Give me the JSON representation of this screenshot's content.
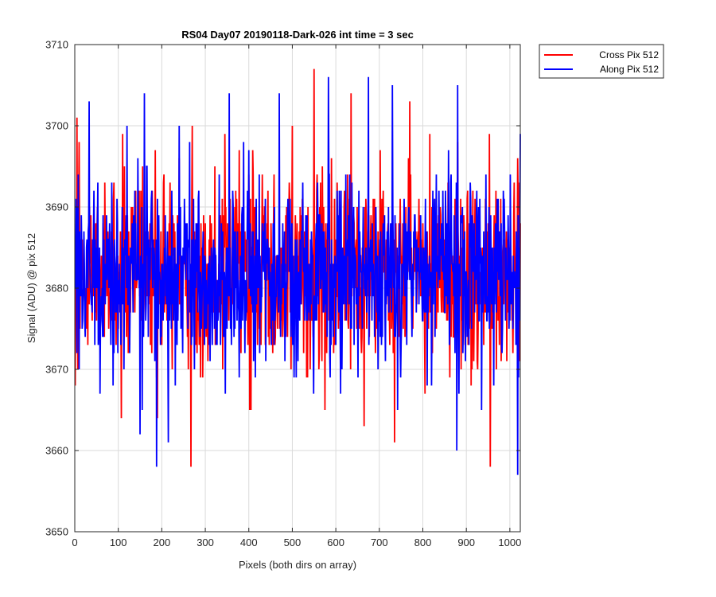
{
  "chart_data": {
    "type": "line",
    "title": "RS04 Day07 20190118-Dark-026 int time = 3 sec",
    "xlabel": "Pixels (both dirs on array)",
    "ylabel": "Signal (ADU) @ pix 512",
    "xlim": [
      0,
      1024
    ],
    "ylim": [
      3650,
      3710
    ],
    "xticks": [
      0,
      100,
      200,
      300,
      400,
      500,
      600,
      700,
      800,
      900,
      1000
    ],
    "yticks": [
      3650,
      3660,
      3670,
      3680,
      3690,
      3700,
      3710
    ],
    "grid": true,
    "legend_position": "outside-top-right",
    "series": [
      {
        "name": "Cross Pix 512",
        "color": "#ff0000",
        "x_start": 1,
        "x_step": 1,
        "mean": 3682,
        "keypoints": [
          {
            "x": 1,
            "y": 3668
          },
          {
            "x": 5,
            "y": 3701
          },
          {
            "x": 10,
            "y": 3698
          },
          {
            "x": 58,
            "y": 3674
          },
          {
            "x": 107,
            "y": 3664
          },
          {
            "x": 110,
            "y": 3699
          },
          {
            "x": 185,
            "y": 3697
          },
          {
            "x": 190,
            "y": 3664
          },
          {
            "x": 205,
            "y": 3694
          },
          {
            "x": 240,
            "y": 3696
          },
          {
            "x": 267,
            "y": 3658
          },
          {
            "x": 270,
            "y": 3700
          },
          {
            "x": 345,
            "y": 3699
          },
          {
            "x": 405,
            "y": 3665
          },
          {
            "x": 500,
            "y": 3700
          },
          {
            "x": 550,
            "y": 3707
          },
          {
            "x": 575,
            "y": 3665
          },
          {
            "x": 635,
            "y": 3704
          },
          {
            "x": 665,
            "y": 3663
          },
          {
            "x": 735,
            "y": 3661
          },
          {
            "x": 770,
            "y": 3703
          },
          {
            "x": 805,
            "y": 3667
          },
          {
            "x": 880,
            "y": 3698
          },
          {
            "x": 955,
            "y": 3658
          },
          {
            "x": 1020,
            "y": 3693
          }
        ]
      },
      {
        "name": "Along Pix 512",
        "color": "#0000ff",
        "x_start": 1,
        "x_step": 1,
        "mean": 3682,
        "keypoints": [
          {
            "x": 1,
            "y": 3680
          },
          {
            "x": 5,
            "y": 3672
          },
          {
            "x": 33,
            "y": 3703
          },
          {
            "x": 58,
            "y": 3667
          },
          {
            "x": 120,
            "y": 3700
          },
          {
            "x": 150,
            "y": 3662
          },
          {
            "x": 160,
            "y": 3704
          },
          {
            "x": 188,
            "y": 3658
          },
          {
            "x": 215,
            "y": 3661
          },
          {
            "x": 240,
            "y": 3700
          },
          {
            "x": 355,
            "y": 3704
          },
          {
            "x": 470,
            "y": 3704
          },
          {
            "x": 583,
            "y": 3706
          },
          {
            "x": 675,
            "y": 3706
          },
          {
            "x": 730,
            "y": 3705
          },
          {
            "x": 820,
            "y": 3668
          },
          {
            "x": 878,
            "y": 3660
          },
          {
            "x": 880,
            "y": 3705
          },
          {
            "x": 963,
            "y": 3668
          },
          {
            "x": 1018,
            "y": 3657
          },
          {
            "x": 1024,
            "y": 3699
          }
        ]
      }
    ]
  }
}
